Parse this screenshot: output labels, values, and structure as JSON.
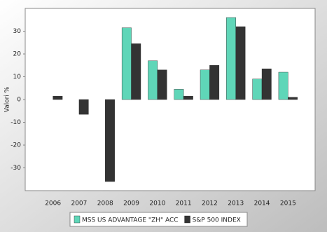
{
  "chart_data": {
    "type": "bar",
    "y_label": "Valori %",
    "categories": [
      "2006",
      "2007",
      "2008",
      "2009",
      "2010",
      "2011",
      "2012",
      "2013",
      "2014",
      "2015"
    ],
    "series": [
      {
        "name": "MSS US ADVANTAGE \"ZH\" ACC",
        "color": "#5fd6b8",
        "values": [
          0,
          0,
          0,
          31.5,
          17,
          4.5,
          13,
          36,
          9,
          12
        ]
      },
      {
        "name": "S&P 500 INDEX",
        "color": "#333333",
        "values": [
          1.5,
          -6.5,
          -36,
          24.5,
          13,
          1.5,
          15,
          32,
          13.5,
          1
        ]
      }
    ],
    "ylim": [
      -40,
      40
    ],
    "yticks": [
      -30,
      -20,
      -10,
      0,
      10,
      20,
      30
    ]
  }
}
